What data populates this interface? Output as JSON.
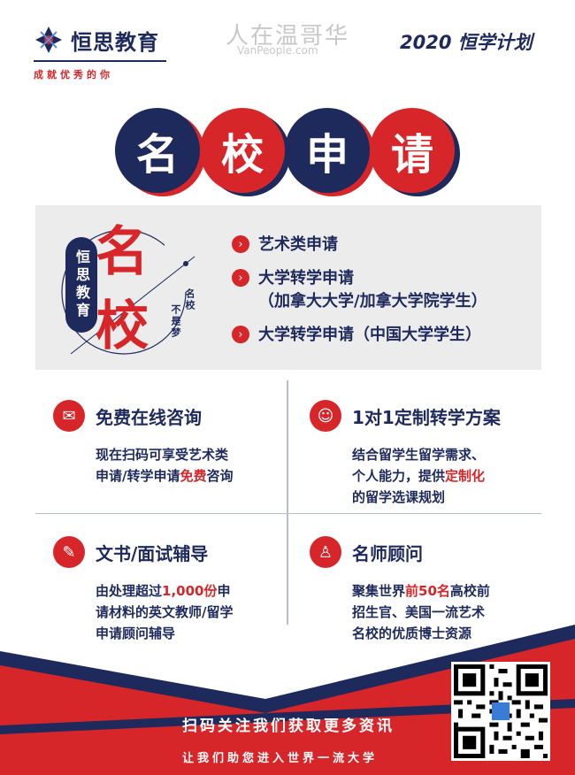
{
  "header": {
    "brand": "恒思教育",
    "slogan": "成就优秀的你",
    "watermark_cn": "人在温哥华",
    "watermark_en": "VanPeople.com",
    "plan": "2020 恒学计划"
  },
  "title_chars": [
    "名",
    "校",
    "申",
    "请"
  ],
  "panel": {
    "big_char_1": "名",
    "big_char_2": "校",
    "badge": "恒思教育",
    "motto_1": "名校",
    "motto_2": "不是梦",
    "bullets": [
      {
        "line1": "艺术类申请",
        "line2": ""
      },
      {
        "line1": "大学转学申请",
        "line2": "（加拿大大学/加拿大学院学生）"
      },
      {
        "line1": "大学转学申请（中国大学学生）",
        "line2": ""
      }
    ]
  },
  "cards": {
    "consult": {
      "title": "免费在线咨询",
      "body_1": "现在扫码可享受艺术类",
      "body_2a": "申请/转学申请",
      "body_2b": "免费",
      "body_2c": "咨询"
    },
    "custom": {
      "title": "1对1定制转学方案",
      "body_1": "结合留学生留学需求、",
      "body_2a": "个人能力，提供",
      "body_2b": "定制化",
      "body_3": "的留学选课规划"
    },
    "docs": {
      "title": "文书/面试辅导",
      "body_1a": "由处理超过",
      "body_1b": "1,000份",
      "body_1c": "申",
      "body_2": "请材料的英文教师/留学",
      "body_3": "申请顾问辅导"
    },
    "mentor": {
      "title": "名师顾问",
      "body_1a": "聚集世界",
      "body_1b": "前50名",
      "body_1c": "高校前",
      "body_2": "招生官、美国一流艺术",
      "body_3": "名校的优质博士资源"
    }
  },
  "footer": {
    "cta_1": "扫码关注我们获取更多资讯",
    "cta_2": "让我们助您进入世界一流大学"
  },
  "colors": {
    "navy": "#1f2a5c",
    "red": "#d6262a",
    "panel_gray": "#ececec"
  }
}
